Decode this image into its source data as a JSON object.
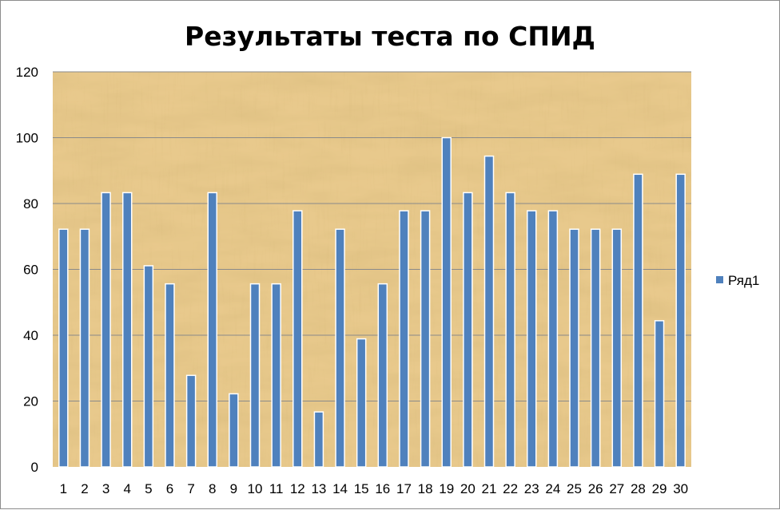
{
  "chart_data": {
    "type": "bar",
    "title": "Результаты теста по СПИД",
    "xlabel": "",
    "ylabel": "",
    "categories": [
      "1",
      "2",
      "3",
      "4",
      "5",
      "6",
      "7",
      "8",
      "9",
      "10",
      "11",
      "12",
      "13",
      "14",
      "15",
      "16",
      "17",
      "18",
      "19",
      "20",
      "21",
      "22",
      "23",
      "24",
      "25",
      "26",
      "27",
      "28",
      "29",
      "30"
    ],
    "series": [
      {
        "name": "Ряд1",
        "color": "#4f81bd",
        "values": [
          72.2,
          72.2,
          83.3,
          83.3,
          61.1,
          55.6,
          27.8,
          83.3,
          22.2,
          55.6,
          55.6,
          77.8,
          16.7,
          72.2,
          38.9,
          55.6,
          77.8,
          77.8,
          100,
          83.3,
          94.4,
          83.3,
          77.8,
          77.8,
          72.2,
          72.2,
          72.2,
          88.9,
          44.4,
          88.9
        ]
      }
    ],
    "ylim": [
      0,
      120
    ],
    "yticks": [
      0,
      20,
      40,
      60,
      80,
      100,
      120
    ],
    "grid": true,
    "legend_position": "right",
    "plot_background": "parchment texture",
    "colors": {
      "bar_fill": "#4f81bd",
      "bar_stroke": "#ffffff",
      "gridline": "#8a8a8a",
      "parchment_base": "#e8c98c"
    }
  }
}
